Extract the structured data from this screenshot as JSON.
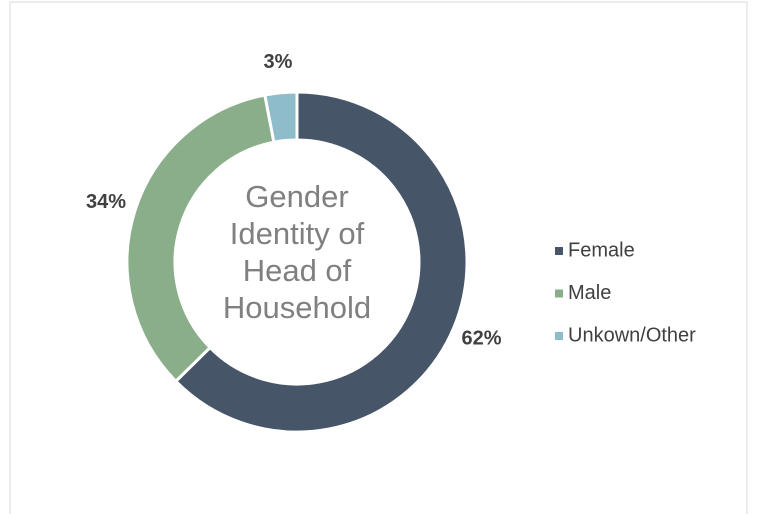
{
  "chart_data": {
    "type": "pie",
    "title": "Gender Identity of Head of Household",
    "categories": [
      "Female",
      "Male",
      "Unkown/Other"
    ],
    "values": [
      62,
      34,
      3
    ],
    "value_labels": [
      "62%",
      "34%",
      "3%"
    ],
    "colors": [
      "#465568",
      "#8aae8a",
      "#8fbccb"
    ],
    "donut": true,
    "legend": "right"
  }
}
